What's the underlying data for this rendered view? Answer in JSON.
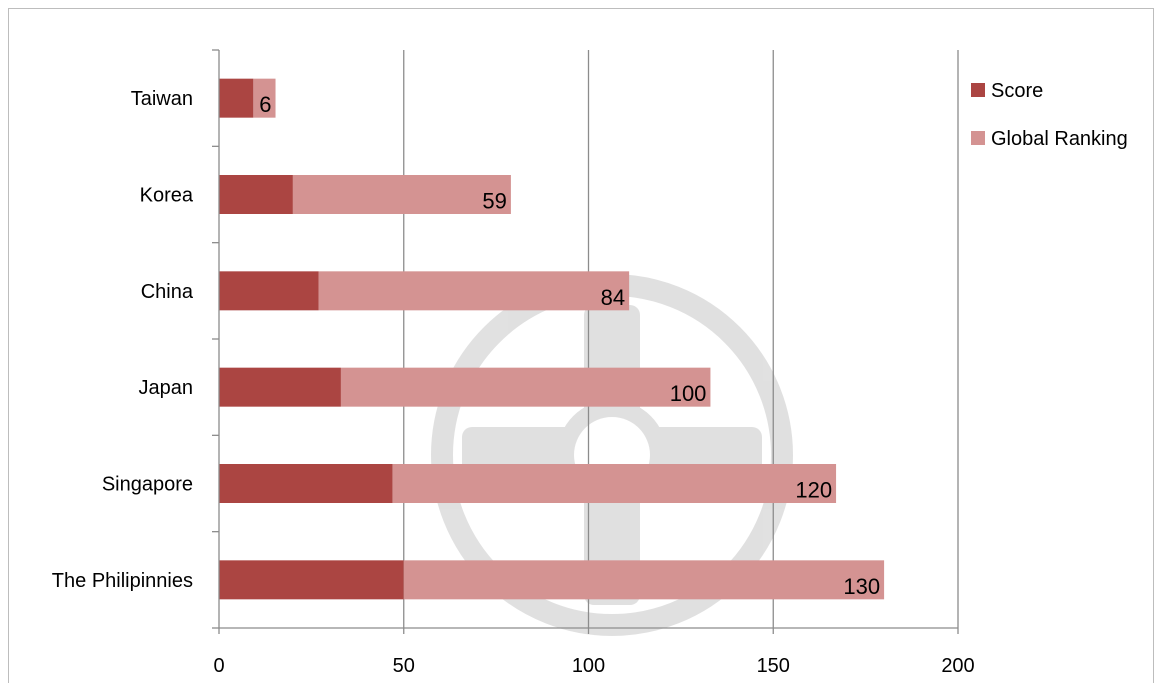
{
  "chart_data": {
    "type": "bar",
    "orientation": "horizontal",
    "stacked": true,
    "categories": [
      "Taiwan",
      "Korea",
      "China",
      "Japan",
      "Singapore",
      "The Philipinnies"
    ],
    "series": [
      {
        "name": "Score",
        "color": "#ab4542",
        "values": [
          9.3,
          20,
          27,
          33,
          47,
          50
        ]
      },
      {
        "name": "Global Ranking",
        "color": "#d49392",
        "values": [
          6,
          59,
          84,
          100,
          120,
          130
        ]
      }
    ],
    "x_ticks": [
      "0",
      "50",
      "100",
      "150",
      "200"
    ],
    "xlim": [
      0,
      200
    ],
    "grid": "vertical-major",
    "legend": "right",
    "watermark": "university-seal"
  }
}
